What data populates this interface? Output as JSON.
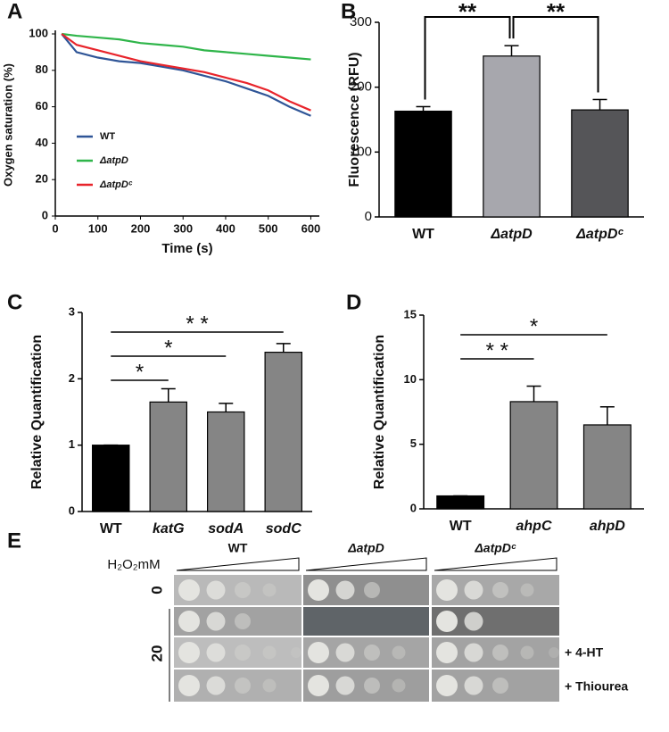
{
  "chart_data": [
    {
      "type": "line",
      "label": "A",
      "x_label": "Time (s)",
      "y_label": "Oxygen saturation (%)",
      "x": [
        15,
        50,
        100,
        150,
        200,
        250,
        300,
        350,
        400,
        450,
        500,
        550,
        600
      ],
      "series": [
        {
          "name": "WT",
          "color": "#2f5597",
          "values": [
            100,
            90,
            87,
            85,
            84,
            82,
            80,
            77,
            74,
            70,
            66,
            60,
            55
          ]
        },
        {
          "name": "ΔatpD",
          "color": "#2fb54a",
          "values": [
            100,
            99,
            98,
            97,
            95,
            94,
            93,
            91,
            90,
            89,
            88,
            87,
            86
          ]
        },
        {
          "name": "ΔatpDᶜ",
          "color": "#e8242b",
          "values": [
            100,
            94,
            91,
            88,
            85,
            83,
            81,
            79,
            76,
            73,
            69,
            63,
            58
          ]
        }
      ],
      "xlim": [
        0,
        620
      ],
      "xticks": [
        0,
        100,
        200,
        300,
        400,
        500,
        600
      ],
      "ylim": [
        0,
        100
      ],
      "yticks": [
        0,
        20,
        40,
        60,
        80,
        100
      ]
    },
    {
      "type": "bar",
      "label": "B",
      "y_label": "Fluorescence (RFU)",
      "categories": [
        "WT",
        "ΔatpD",
        "ΔatpDᶜ"
      ],
      "values": [
        163,
        248,
        165
      ],
      "errors": [
        7,
        16,
        16
      ],
      "colors": [
        "#000000",
        "#a7a7ad",
        "#555558"
      ],
      "ylim": [
        0,
        300
      ],
      "yticks": [
        0,
        100,
        200,
        300
      ],
      "brackets": true,
      "annotations": [
        {
          "label": "**",
          "between": [
            "WT",
            "ΔatpD"
          ]
        },
        {
          "label": "**",
          "between": [
            "ΔatpD",
            "ΔatpDᶜ"
          ]
        }
      ]
    },
    {
      "type": "bar",
      "label": "C",
      "y_label": "Relative Quantification",
      "categories": [
        "WT",
        "katG",
        "sodA",
        "sodC"
      ],
      "values": [
        1,
        1.65,
        1.5,
        2.4
      ],
      "errors": [
        0,
        0.2,
        0.13,
        0.13
      ],
      "colors": [
        "#000000",
        "#858585",
        "#858585",
        "#858585"
      ],
      "ylim": [
        0,
        3
      ],
      "yticks": [
        0,
        1,
        2,
        3
      ],
      "brackets": false,
      "annotations": [
        {
          "label": "*",
          "between": [
            "WT",
            "katG"
          ]
        },
        {
          "label": "*",
          "between": [
            "WT",
            "sodA"
          ]
        },
        {
          "label": "* *",
          "between": [
            "WT",
            "sodC"
          ]
        }
      ]
    },
    {
      "type": "bar",
      "label": "D",
      "y_label": "Relative Quantification",
      "categories": [
        "WT",
        "ahpC",
        "ahpD"
      ],
      "values": [
        1,
        8.3,
        6.5
      ],
      "errors": [
        0,
        1.2,
        1.4
      ],
      "colors": [
        "#000000",
        "#858585",
        "#858585"
      ],
      "ylim": [
        0,
        15
      ],
      "yticks": [
        0,
        5,
        10,
        15
      ],
      "brackets": false,
      "annotations": [
        {
          "label": "* *",
          "between": [
            "WT",
            "ahpC"
          ]
        },
        {
          "label": "*",
          "between": [
            "WT",
            "ahpD"
          ]
        }
      ]
    }
  ],
  "panel_e": {
    "label": "E",
    "reagent": "H₂O₂mM",
    "strains": [
      "WT",
      "ΔatpD",
      "ΔatpDᶜ"
    ],
    "concentrations": [
      "0",
      "20"
    ],
    "treatments": [
      "+ 4-HT",
      "+ Thiourea"
    ]
  }
}
